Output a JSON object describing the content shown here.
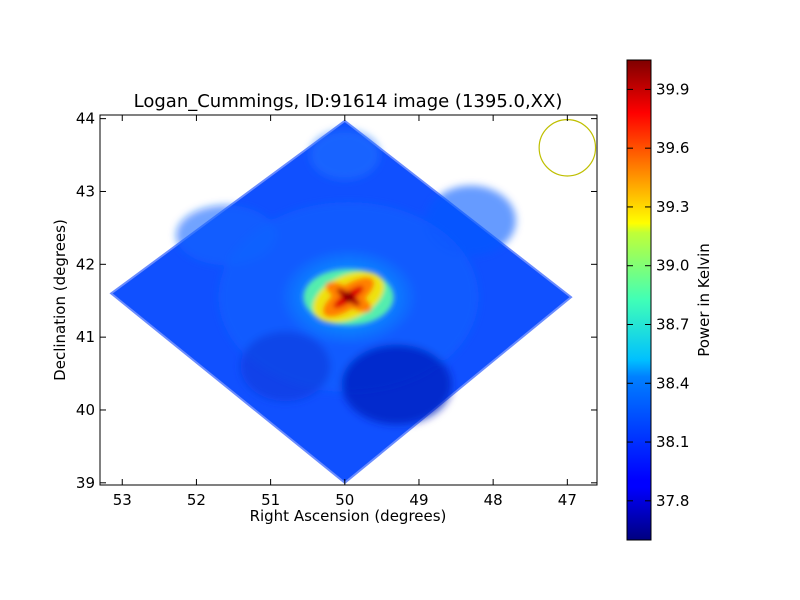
{
  "chart_data": {
    "type": "heatmap",
    "title": "Logan_Cummings, ID:91614 image (1395.0,XX)",
    "xlabel": "Right Ascension (degrees)",
    "ylabel": "Declination (degrees)",
    "xlim": [
      53.3,
      46.6
    ],
    "ylim": [
      38.97,
      44.05
    ],
    "x_ticks": [
      "53",
      "52",
      "51",
      "50",
      "49",
      "48",
      "47"
    ],
    "x_tick_values": [
      53,
      52,
      51,
      50,
      49,
      48,
      47
    ],
    "y_ticks": [
      "39",
      "40",
      "41",
      "42",
      "43",
      "44"
    ],
    "y_tick_values": [
      39,
      40,
      41,
      42,
      43,
      44
    ],
    "colormap": "jet",
    "colorbar": {
      "label": "Power in Kelvin",
      "range": [
        37.6,
        40.05
      ],
      "ticks": [
        "37.8",
        "38.1",
        "38.4",
        "38.7",
        "39.0",
        "39.3",
        "39.6",
        "39.9"
      ],
      "tick_values": [
        37.8,
        38.1,
        38.4,
        38.7,
        39.0,
        39.3,
        39.6,
        39.9
      ]
    },
    "footprint_vertices_deg": [
      [
        50.0,
        43.97
      ],
      [
        53.15,
        41.6
      ],
      [
        50.0,
        39.0
      ],
      [
        46.95,
        41.55
      ]
    ],
    "background_level_K": 38.05,
    "peak": {
      "ra": 49.95,
      "dec": 41.55,
      "value_K": 40.0
    },
    "beam_marker": {
      "ra": 47.0,
      "dec": 43.6,
      "radius_deg": 0.38,
      "color": "#bfbf00"
    }
  }
}
